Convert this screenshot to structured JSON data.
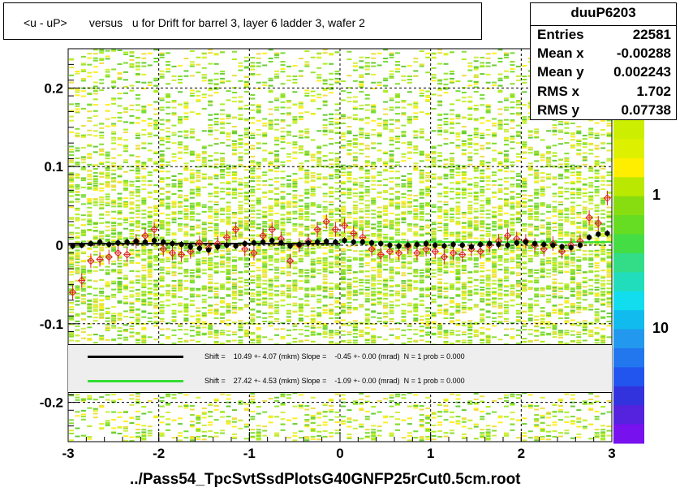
{
  "title": "<u - uP>       versus   u for Drift for barrel 3, layer 6 ladder 3, wafer 2",
  "x_axis_title": "../Pass54_TpcSvtSsdPlotsG40GNFP25rCut0.5cm.root",
  "stats": {
    "name": "duuP6203",
    "rows": [
      {
        "label": "Entries",
        "value": "22581"
      },
      {
        "label": "Mean x",
        "value": "-0.00288"
      },
      {
        "label": "Mean y",
        "value": "0.002243"
      },
      {
        "label": "RMS x",
        "value": "1.702"
      },
      {
        "label": "RMS y",
        "value": "0.07738"
      }
    ]
  },
  "legend": [
    {
      "color": "#000000",
      "text": "Shift =    10.49 +- 4.07 (mkm) Slope =    -0.45 +- 0.00 (mrad)  N = 1 prob = 0.000"
    },
    {
      "color": "#33dd33",
      "text": "Shift =    27.42 +- 4.53 (mkm) Slope =    -1.09 +- 0.00 (mrad)  N = 1 prob = 0.000"
    }
  ],
  "palette_labels": [
    "1",
    "10"
  ],
  "palette_top_fragment": "0",
  "chart_data": {
    "type": "heatmap",
    "title": "<u - uP>       versus   u for Drift for barrel 3, layer 6 ladder 3, wafer 2",
    "xlabel": "../Pass54_TpcSvtSsdPlotsG40GNFP25rCut0.5cm.root",
    "ylabel": "",
    "xlim": [
      -3,
      3
    ],
    "ylim": [
      -0.25,
      0.25
    ],
    "x_ticks": [
      -3,
      -2,
      -1,
      0,
      1,
      2,
      3
    ],
    "x_tick_labels": [
      "-3",
      "-2",
      "-1",
      "0",
      "1",
      "2",
      "3"
    ],
    "y_ticks": [
      -0.2,
      -0.1,
      0,
      0.1,
      0.2
    ],
    "y_tick_labels": [
      "-0.2",
      "-0.1",
      "0",
      "0.1",
      "0.2"
    ],
    "grid": true,
    "colorscale": "log",
    "series": [
      {
        "name": "black profile",
        "x": [
          -2.95,
          -2.85,
          -2.75,
          -2.65,
          -2.55,
          -2.45,
          -2.35,
          -2.25,
          -2.15,
          -2.05,
          -1.95,
          -1.85,
          -1.75,
          -1.65,
          -1.55,
          -1.45,
          -1.35,
          -1.25,
          -1.15,
          -1.05,
          -0.95,
          -0.85,
          -0.75,
          -0.65,
          -0.55,
          -0.45,
          -0.35,
          -0.25,
          -0.15,
          -0.05,
          0.05,
          0.15,
          0.25,
          0.35,
          0.45,
          0.55,
          0.65,
          0.75,
          0.85,
          0.95,
          1.05,
          1.15,
          1.25,
          1.35,
          1.45,
          1.55,
          1.65,
          1.75,
          1.85,
          1.95,
          2.05,
          2.15,
          2.25,
          2.35,
          2.45,
          2.55,
          2.65,
          2.75,
          2.85,
          2.95
        ],
        "y": [
          -0.001,
          0.0,
          0.002,
          0.004,
          0.001,
          0.003,
          0.004,
          0.005,
          0.004,
          0.006,
          0.004,
          0.002,
          0.001,
          -0.002,
          -0.004,
          -0.006,
          -0.002,
          0.0,
          -0.001,
          0.002,
          0.003,
          0.004,
          0.006,
          0.003,
          -0.001,
          0.001,
          0.003,
          0.004,
          0.005,
          0.004,
          0.006,
          0.004,
          0.004,
          0.003,
          0.002,
          0.0,
          -0.001,
          0.0,
          0.001,
          0.002,
          0.0,
          -0.001,
          0.001,
          0.0,
          -0.002,
          0.001,
          0.002,
          0.001,
          0.0,
          0.003,
          0.004,
          0.002,
          0.001,
          0.0,
          -0.002,
          -0.003,
          0.0,
          0.01,
          0.014,
          0.015
        ]
      },
      {
        "name": "red profile",
        "x": [
          -2.95,
          -2.85,
          -2.75,
          -2.65,
          -2.55,
          -2.45,
          -2.35,
          -2.25,
          -2.15,
          -2.05,
          -1.95,
          -1.85,
          -1.75,
          -1.65,
          -1.55,
          -1.45,
          -1.35,
          -1.25,
          -1.15,
          -1.05,
          -0.95,
          -0.85,
          -0.75,
          -0.65,
          -0.55,
          -0.45,
          -0.35,
          -0.25,
          -0.15,
          -0.05,
          0.05,
          0.15,
          0.25,
          0.35,
          0.45,
          0.55,
          0.65,
          0.75,
          0.85,
          0.95,
          1.05,
          1.15,
          1.25,
          1.35,
          1.45,
          1.55,
          1.65,
          1.75,
          1.85,
          1.95,
          2.05,
          2.15,
          2.25,
          2.35,
          2.45,
          2.55,
          2.65,
          2.75,
          2.85,
          2.95
        ],
        "y": [
          -0.06,
          -0.045,
          -0.02,
          -0.018,
          -0.015,
          -0.01,
          -0.012,
          0.005,
          0.012,
          0.02,
          -0.005,
          -0.01,
          -0.012,
          -0.008,
          0.003,
          -0.004,
          0.002,
          0.01,
          0.02,
          -0.005,
          -0.01,
          0.012,
          0.02,
          0.008,
          -0.02,
          0.0,
          0.005,
          0.02,
          0.03,
          0.02,
          0.025,
          0.015,
          0.01,
          -0.005,
          -0.012,
          -0.008,
          -0.01,
          -0.002,
          -0.01,
          -0.005,
          -0.008,
          -0.015,
          -0.01,
          -0.012,
          -0.005,
          -0.008,
          0.0,
          0.005,
          0.012,
          0.008,
          0.005,
          0.0,
          -0.005,
          0.002,
          -0.008,
          0.0,
          0.005,
          0.035,
          0.028,
          0.06
        ]
      }
    ],
    "fit_lines": [
      {
        "color": "#000000",
        "x": [
          -3,
          0
        ],
        "y": [
          0.002,
          0.002
        ]
      },
      {
        "color": "#33dd33",
        "x": [
          0,
          3
        ],
        "y": [
          0.004,
          0.004
        ]
      }
    ]
  }
}
